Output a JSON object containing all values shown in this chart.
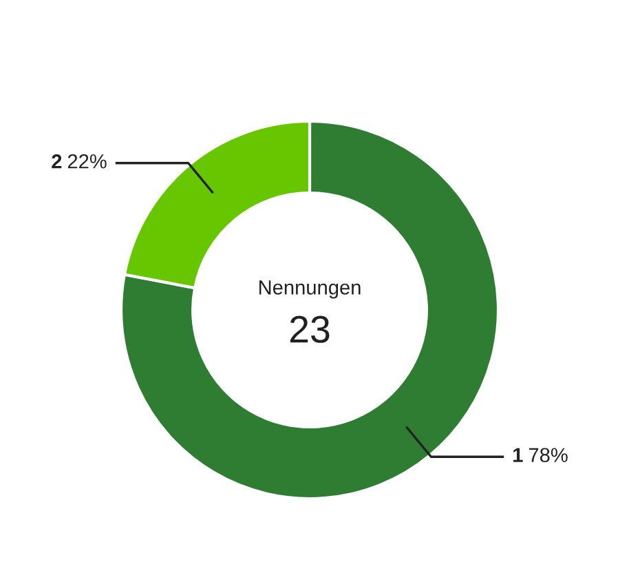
{
  "chart_data": {
    "type": "donut",
    "categories": [
      "1",
      "2"
    ],
    "values": [
      78,
      22
    ],
    "colors": [
      "#2e7d32",
      "#66c600"
    ],
    "value_labels": [
      "78%",
      "22%"
    ],
    "annotations": [
      "Nennungen",
      "23"
    ]
  }
}
